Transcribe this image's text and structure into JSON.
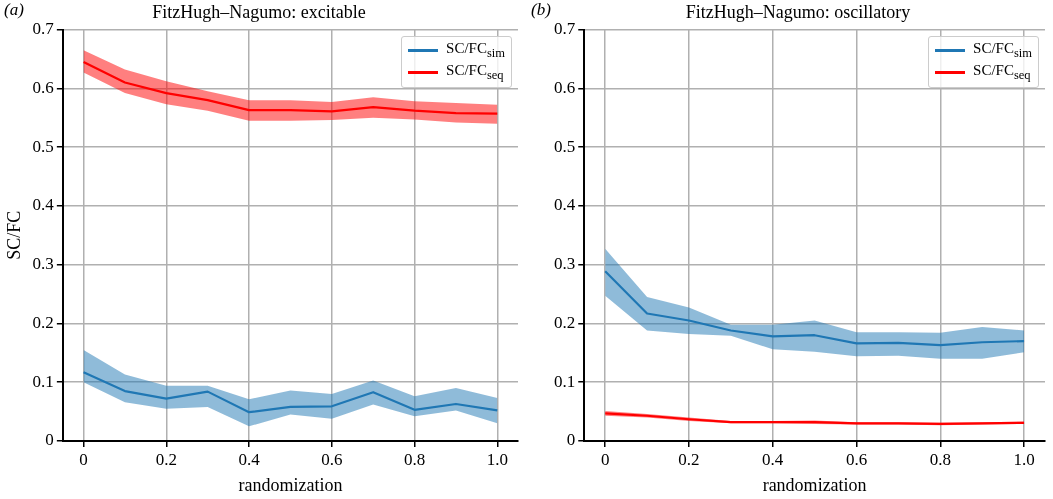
{
  "chart_data": [
    {
      "type": "line",
      "title": "FitzHugh–Nagumo: excitable",
      "xlabel": "randomization",
      "ylabel": "SC/FC",
      "annotations": [
        "(a)"
      ],
      "x": [
        0,
        0.1,
        0.2,
        0.3,
        0.4,
        0.5,
        0.6,
        0.7,
        0.8,
        0.9,
        1.0
      ],
      "series": [
        {
          "name": "SC/FC$_{sim}$",
          "color": "#1f77b4",
          "values": [
            0.117,
            0.085,
            0.072,
            0.084,
            0.049,
            0.058,
            0.059,
            0.083,
            0.053,
            0.063,
            0.052
          ],
          "upper": [
            0.155,
            0.113,
            0.094,
            0.094,
            0.071,
            0.086,
            0.08,
            0.103,
            0.076,
            0.09,
            0.073
          ],
          "lower": [
            0.1,
            0.066,
            0.055,
            0.058,
            0.025,
            0.045,
            0.038,
            0.062,
            0.042,
            0.052,
            0.03
          ]
        },
        {
          "name": "SC/FC$_{seq}$",
          "color": "#ff0000",
          "values": [
            0.645,
            0.61,
            0.592,
            0.58,
            0.563,
            0.563,
            0.561,
            0.568,
            0.562,
            0.558,
            0.557
          ],
          "upper": [
            0.665,
            0.632,
            0.612,
            0.595,
            0.58,
            0.58,
            0.577,
            0.585,
            0.578,
            0.575,
            0.572
          ],
          "lower": [
            0.627,
            0.592,
            0.573,
            0.562,
            0.545,
            0.545,
            0.546,
            0.55,
            0.547,
            0.542,
            0.54
          ]
        }
      ],
      "xlim": [
        -0.05,
        1.05
      ],
      "ylim": [
        0,
        0.7
      ],
      "xticks": [
        0,
        0.2,
        0.4,
        0.6,
        0.8,
        {
          "value": 1,
          "label": "1.0"
        }
      ],
      "yticks": [
        0,
        0.1,
        0.2,
        0.3,
        0.4,
        0.5,
        0.6,
        0.7
      ],
      "grid": true,
      "legend": "top right",
      "marker": "none",
      "line_style": "solid"
    },
    {
      "type": "line",
      "title": "FitzHugh–Nagumo: oscillatory",
      "xlabel": "randomization",
      "annotations": [
        "(b)"
      ],
      "x": [
        0,
        0.1,
        0.2,
        0.3,
        0.4,
        0.5,
        0.6,
        0.7,
        0.8,
        0.9,
        1.0
      ],
      "series": [
        {
          "name": "SC/FC$_{sim}$",
          "color": "#1f77b4",
          "values": [
            0.289,
            0.217,
            0.205,
            0.188,
            0.178,
            0.18,
            0.166,
            0.167,
            0.163,
            0.168,
            0.17
          ],
          "upper": [
            0.327,
            0.245,
            0.227,
            0.198,
            0.198,
            0.205,
            0.185,
            0.185,
            0.184,
            0.194,
            0.188
          ],
          "lower": [
            0.247,
            0.188,
            0.182,
            0.179,
            0.156,
            0.152,
            0.144,
            0.145,
            0.14,
            0.14,
            0.151
          ]
        },
        {
          "name": "SC/FC$_{seq}$",
          "color": "#ff0000",
          "values": [
            0.047,
            0.043,
            0.037,
            0.032,
            0.032,
            0.032,
            0.03,
            0.03,
            0.029,
            0.03,
            0.031
          ],
          "upper": [
            0.051,
            0.046,
            0.04,
            0.034,
            0.034,
            0.035,
            0.032,
            0.032,
            0.031,
            0.032,
            0.033
          ],
          "lower": [
            0.043,
            0.04,
            0.034,
            0.03,
            0.03,
            0.029,
            0.028,
            0.028,
            0.027,
            0.028,
            0.029
          ]
        }
      ],
      "xlim": [
        -0.05,
        1.05
      ],
      "ylim": [
        0,
        0.7
      ],
      "xticks": [
        0,
        0.2,
        0.4,
        0.6,
        0.8,
        {
          "value": 1,
          "label": "1.0"
        }
      ],
      "yticks": [
        0,
        0.1,
        0.2,
        0.3,
        0.4,
        0.5,
        0.6,
        0.7
      ],
      "grid": true,
      "legend": "top right",
      "marker": "none",
      "line_style": "solid"
    }
  ]
}
